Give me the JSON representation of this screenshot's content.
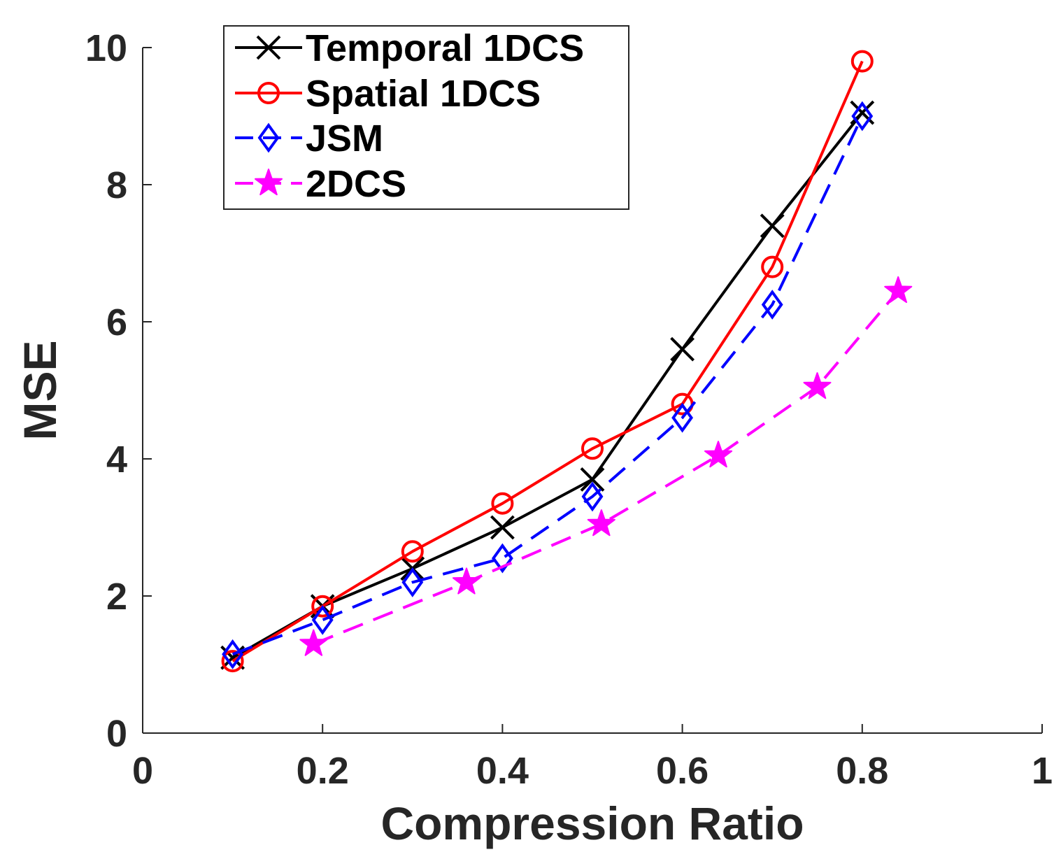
{
  "chart_data": {
    "type": "line",
    "title": "",
    "xlabel": "Compression Ratio",
    "ylabel": "MSE",
    "xlim": [
      0,
      1
    ],
    "ylim": [
      0,
      10
    ],
    "xticks": [
      0,
      0.2,
      0.4,
      0.6,
      0.8,
      1
    ],
    "xtick_labels": [
      "0",
      "0.2",
      "0.4",
      "0.6",
      "0.8",
      "1"
    ],
    "yticks": [
      0,
      2,
      4,
      6,
      8,
      10
    ],
    "ytick_labels": [
      "0",
      "2",
      "4",
      "6",
      "8",
      "10"
    ],
    "grid": false,
    "legend_position": "top-left",
    "series": [
      {
        "name": "Temporal 1DCS",
        "color": "#000000",
        "line_style": "solid",
        "marker": "x",
        "x": [
          0.1,
          0.2,
          0.3,
          0.4,
          0.5,
          0.6,
          0.7,
          0.8
        ],
        "y": [
          1.1,
          1.85,
          2.4,
          3.0,
          3.7,
          5.6,
          7.4,
          9.05
        ]
      },
      {
        "name": "Spatial 1DCS",
        "color": "#ff0000",
        "line_style": "solid",
        "marker": "circle",
        "x": [
          0.1,
          0.2,
          0.3,
          0.4,
          0.5,
          0.6,
          0.7,
          0.8
        ],
        "y": [
          1.05,
          1.85,
          2.65,
          3.35,
          4.15,
          4.8,
          6.8,
          9.8
        ]
      },
      {
        "name": "JSM",
        "color": "#0000ff",
        "line_style": "dashed",
        "marker": "diamond",
        "x": [
          0.1,
          0.2,
          0.3,
          0.4,
          0.5,
          0.6,
          0.7,
          0.8
        ],
        "y": [
          1.15,
          1.65,
          2.2,
          2.55,
          3.45,
          4.6,
          6.25,
          9.0
        ]
      },
      {
        "name": "2DCS",
        "color": "#ff00ff",
        "line_style": "dashed",
        "marker": "star",
        "x": [
          0.19,
          0.36,
          0.51,
          0.64,
          0.75,
          0.84
        ],
        "y": [
          1.3,
          2.2,
          3.05,
          4.05,
          5.05,
          6.45
        ]
      }
    ]
  }
}
